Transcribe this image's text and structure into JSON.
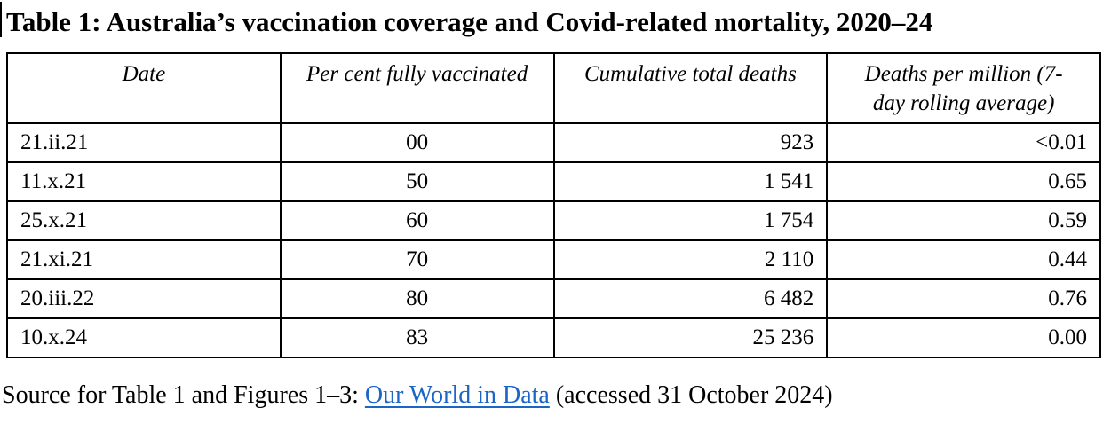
{
  "page": {
    "title": "Table 1: Australia’s vaccination coverage and Covid-related mortality, 2020–24"
  },
  "table": {
    "headers": [
      "Date",
      "Per cent fully vaccinated",
      "Cumulative total deaths",
      "Deaths per million (7-\nday rolling average)"
    ],
    "rows": [
      [
        "21.ii.21",
        "00",
        "923",
        "<0.01"
      ],
      [
        "11.x.21",
        "50",
        "1 541",
        "0.65"
      ],
      [
        "25.x.21",
        "60",
        "1 754",
        "0.59"
      ],
      [
        "21.xi.21",
        "70",
        "2 110",
        "0.44"
      ],
      [
        "20.iii.22",
        "80",
        "6 482",
        "0.76"
      ],
      [
        "10.x.24",
        "83",
        "25 236",
        "0.00"
      ]
    ]
  },
  "source": {
    "prefix": "Source for Table 1 and Figures 1–3: ",
    "link_label": "Our World in Data",
    "suffix": " (accessed 31 October 2024)"
  },
  "colors": {
    "link": "#1b64c8",
    "text": "#000000",
    "border": "#000000"
  }
}
